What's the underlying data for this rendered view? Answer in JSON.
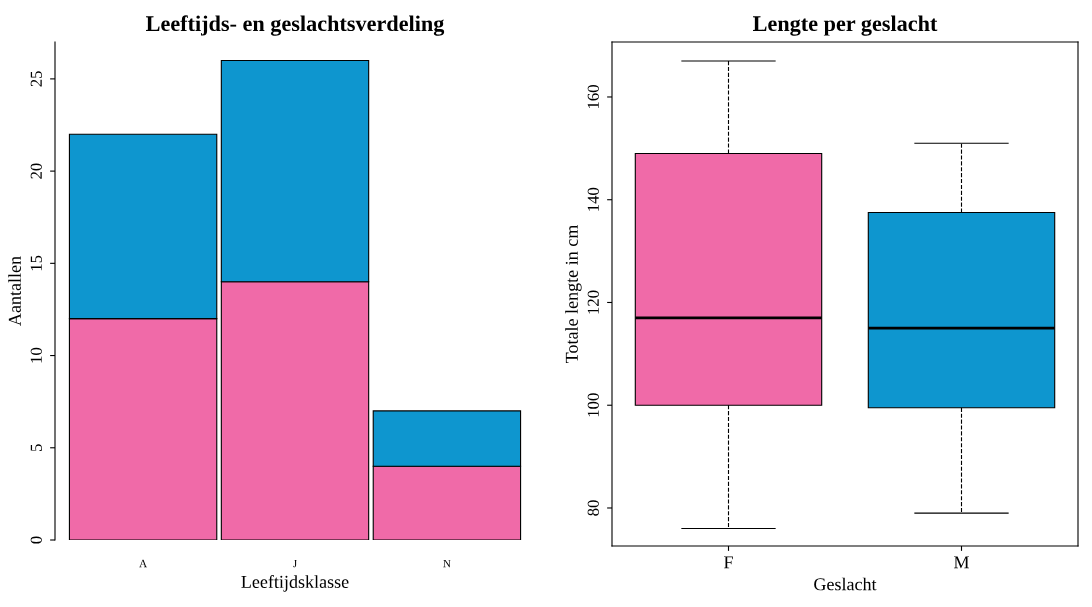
{
  "chart_data": [
    {
      "type": "bar",
      "title": "Leeftijds- en geslachtsverdeling",
      "xlabel": "Leeftijdsklasse",
      "ylabel": "Aantallen",
      "categories": [
        "A",
        "J",
        "N"
      ],
      "stacked": true,
      "series": [
        {
          "color": "#f06aa8",
          "values": [
            12,
            14,
            4
          ]
        },
        {
          "color": "#0e96cf",
          "values": [
            10,
            12,
            3
          ]
        }
      ],
      "ylim": [
        0,
        27
      ],
      "yticks": [
        0,
        5,
        10,
        15,
        20,
        25
      ],
      "grid": false,
      "legend": false
    },
    {
      "type": "box",
      "title": "Lengte per geslacht",
      "xlabel": "Geslacht",
      "ylabel": "Totale lengte in cm",
      "categories": [
        "F",
        "M"
      ],
      "colors": [
        "#f06aa8",
        "#0e96cf"
      ],
      "boxes": [
        {
          "low": 76,
          "q1": 100,
          "median": 117,
          "q3": 149,
          "high": 167
        },
        {
          "low": 79,
          "q1": 99.5,
          "median": 115,
          "q3": 137.5,
          "high": 151
        }
      ],
      "ylim": [
        72.6,
        170.7
      ],
      "yticks": [
        80,
        100,
        120,
        140,
        160
      ],
      "line_style": "dashed",
      "grid": false,
      "legend": false
    }
  ]
}
